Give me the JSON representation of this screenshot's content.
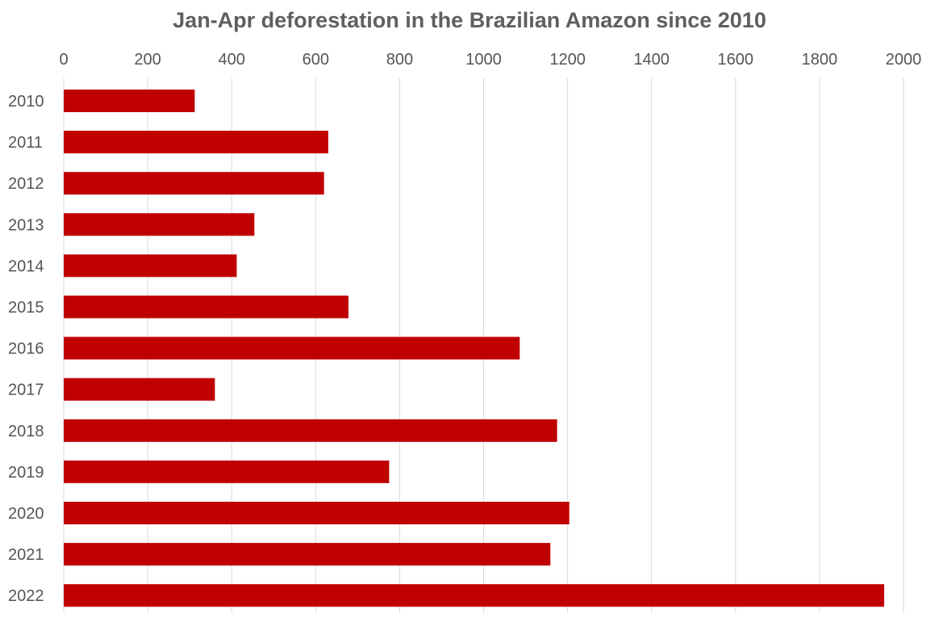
{
  "chart_data": {
    "type": "bar",
    "orientation": "horizontal",
    "title": "Jan-Apr deforestation in the Brazilian Amazon since 2010",
    "xlabel": "",
    "ylabel": "",
    "categories": [
      "2010",
      "2011",
      "2012",
      "2013",
      "2014",
      "2015",
      "2016",
      "2017",
      "2018",
      "2019",
      "2020",
      "2021",
      "2022"
    ],
    "values": [
      312,
      630,
      620,
      454,
      412,
      678,
      1086,
      360,
      1175,
      775,
      1204,
      1159,
      1954
    ],
    "xlim": [
      0,
      2000
    ],
    "x_ticks": [
      "0",
      "200",
      "400",
      "600",
      "800",
      "1000",
      "1200",
      "1400",
      "1600",
      "1800",
      "2000"
    ],
    "x_tick_values": [
      0,
      200,
      400,
      600,
      800,
      1000,
      1200,
      1400,
      1600,
      1800,
      2000
    ],
    "x_axis_position": "top",
    "grid": true,
    "legend": "none",
    "bar_color": "#c00000",
    "grid_color": "#d9d9d9",
    "text_color": "#555555",
    "title_color": "#5f5f5f"
  }
}
